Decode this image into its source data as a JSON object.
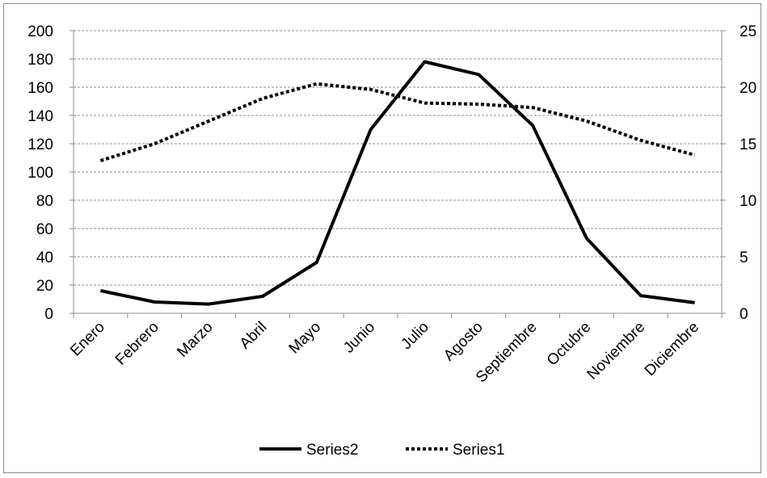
{
  "chart_data": {
    "type": "line",
    "categories": [
      "Enero",
      "Febrero",
      "Marzo",
      "Abril",
      "Mayo",
      "Junio",
      "Julio",
      "Agosto",
      "Septiembre",
      "Octubre",
      "Noviembre",
      "Diciembre"
    ],
    "series": [
      {
        "name": "Series2",
        "axis": "left",
        "style": "solid",
        "color": "#000000",
        "values": [
          16,
          8,
          6.5,
          12,
          36,
          130,
          178,
          169,
          133,
          53,
          12.5,
          7.5
        ]
      },
      {
        "name": "Series1",
        "axis": "right",
        "style": "dotted",
        "color": "#000000",
        "values": [
          13.5,
          15,
          17,
          19,
          20.3,
          19.8,
          18.6,
          18.5,
          18.2,
          17,
          15.3,
          14
        ]
      }
    ],
    "y_left": {
      "min": 0,
      "max": 200,
      "step": 20,
      "ticks": [
        "0",
        "20",
        "40",
        "60",
        "80",
        "100",
        "120",
        "140",
        "160",
        "180",
        "200"
      ]
    },
    "y_right": {
      "min": 0,
      "max": 25,
      "step": 5,
      "ticks": [
        "0",
        "5",
        "10",
        "15",
        "20",
        "25"
      ]
    },
    "grid": true,
    "grid_style": "dashed",
    "legend_position": "bottom",
    "title": "",
    "xlabel": "",
    "ylabel": ""
  }
}
